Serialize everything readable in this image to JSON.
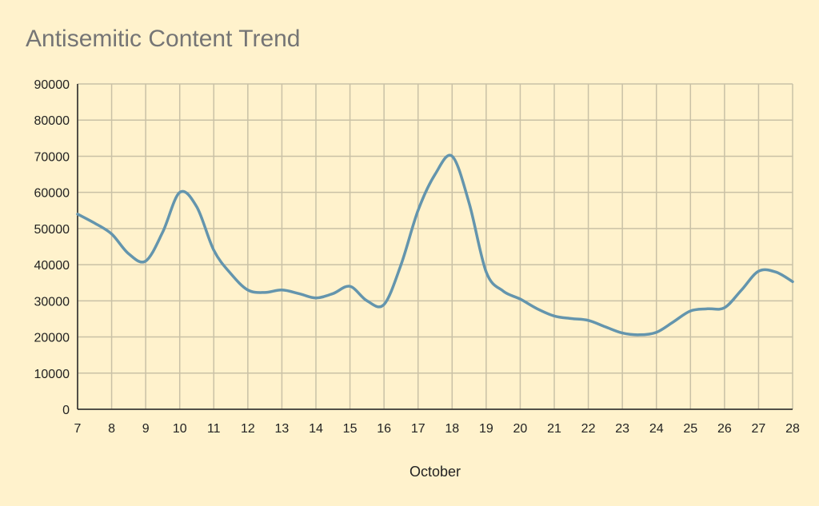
{
  "chart_data": {
    "type": "line",
    "title": "Antisemitic Content Trend",
    "xlabel": "October",
    "ylabel": "",
    "ylim": [
      0,
      90000
    ],
    "yticks": [
      0,
      10000,
      20000,
      30000,
      40000,
      50000,
      60000,
      70000,
      80000,
      90000
    ],
    "xlim": [
      7,
      28
    ],
    "grid": true,
    "colors": {
      "background": "#fff2cc",
      "grid": "#c9c1a6",
      "line": "#6495ad",
      "axis": "#222222"
    },
    "x": [
      7,
      7.5,
      8,
      8.5,
      9,
      9.5,
      10,
      10.5,
      11,
      11.5,
      12,
      12.5,
      13,
      13.5,
      14,
      14.5,
      15,
      15.5,
      16,
      16.5,
      17,
      17.5,
      18,
      18.5,
      19,
      19.5,
      20,
      20.5,
      21,
      21.5,
      22,
      22.5,
      23,
      23.5,
      24,
      24.5,
      25,
      25.5,
      26,
      26.5,
      27,
      27.5,
      28
    ],
    "series": [
      {
        "values": [
          54000,
          51500,
          48500,
          43000,
          41000,
          49000,
          60000,
          56000,
          44000,
          37500,
          33000,
          32300,
          33000,
          32000,
          30800,
          32000,
          34000,
          30000,
          29000,
          40000,
          55000,
          65000,
          70000,
          57000,
          38000,
          32700,
          30500,
          27800,
          25800,
          25100,
          24600,
          22800,
          21100,
          20600,
          21300,
          24200,
          27200,
          27800,
          28100,
          33000,
          38200,
          38000,
          35300
        ]
      }
    ]
  }
}
